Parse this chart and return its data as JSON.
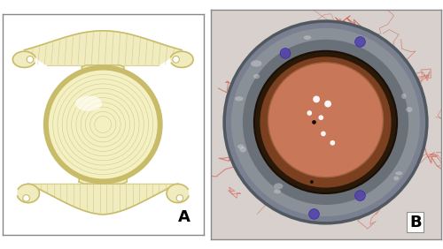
{
  "fig_width": 5.0,
  "fig_height": 2.82,
  "dpi": 100,
  "background_color": "#ffffff",
  "panel_A_label": "A",
  "panel_B_label": "B",
  "label_fontsize": 13,
  "label_color": "#000000",
  "label_fontweight": "bold",
  "border_color": "#888888",
  "border_linewidth": 1.0,
  "panel_A_bg": "#ffffff",
  "lens_body_color": "#f5f0c0",
  "lens_body_edge": "#c8bc6a",
  "lens_haptic_color": "#f0ecc0",
  "lens_highlight": "#fffff0",
  "sclera_bg_color": "#b8bfc0",
  "iris_color": "#9aa0a8",
  "pupil_ring_color": "#3a2010",
  "iol_color": "#c87858",
  "panel_split": 0.468
}
